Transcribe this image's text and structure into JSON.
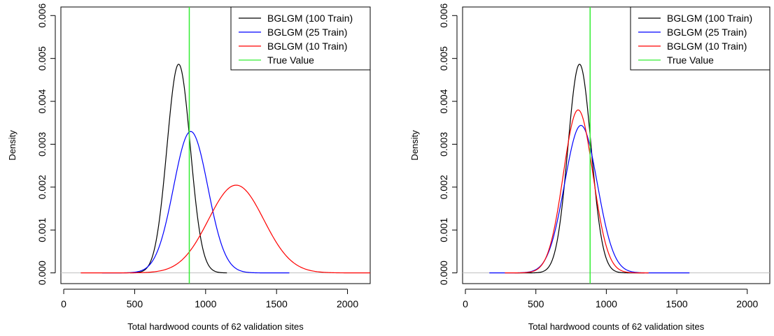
{
  "chart_data": [
    {
      "type": "line",
      "title": "",
      "xlabel": "Total hardwood counts of 62 validation sites",
      "ylabel": "Density",
      "xlim": [
        -20,
        2160
      ],
      "ylim": [
        -0.00025,
        0.0062
      ],
      "x_ticks": [
        0,
        500,
        1000,
        1500,
        2000
      ],
      "y_ticks": [
        0.0,
        0.001,
        0.002,
        0.003,
        0.004,
        0.005,
        0.006
      ],
      "y_tick_labels": [
        "0.000",
        "0.001",
        "0.002",
        "0.003",
        "0.004",
        "0.005",
        "0.006"
      ],
      "hline": 0,
      "legend_position": "top-right",
      "series": [
        {
          "name": "BGLGM (100 Train)",
          "color": "#000000",
          "curve": "normal",
          "mean": 810,
          "sd": 82,
          "x_range": [
            470,
            1150
          ]
        },
        {
          "name": "BGLGM (25 Train)",
          "color": "#0000ff",
          "curve": "normal",
          "mean": 895,
          "sd": 121,
          "x_range": [
            270,
            1590
          ]
        },
        {
          "name": "BGLGM (10 Train)",
          "color": "#ff0000",
          "curve": "normal",
          "mean": 1215,
          "sd": 195,
          "x_range": [
            120,
            2160
          ]
        }
      ],
      "reference_line": {
        "name": "True Value",
        "color": "#33ee33",
        "x": 885
      }
    },
    {
      "type": "line",
      "title": "",
      "xlabel": "Total hardwood counts of 62 validation sites",
      "ylabel": "Density",
      "xlim": [
        -20,
        2160
      ],
      "ylim": [
        -0.00025,
        0.0062
      ],
      "x_ticks": [
        0,
        500,
        1000,
        1500,
        2000
      ],
      "y_ticks": [
        0.0,
        0.001,
        0.002,
        0.003,
        0.004,
        0.005,
        0.006
      ],
      "y_tick_labels": [
        "0.000",
        "0.001",
        "0.002",
        "0.003",
        "0.004",
        "0.005",
        "0.006"
      ],
      "hline": 0,
      "legend_position": "top-right",
      "series": [
        {
          "name": "BGLGM (100 Train)",
          "color": "#000000",
          "curve": "normal",
          "mean": 810,
          "sd": 82,
          "x_range": [
            350,
            1270
          ]
        },
        {
          "name": "BGLGM (25 Train)",
          "color": "#0000ff",
          "curve": "normal",
          "mean": 820,
          "sd": 116,
          "x_range": [
            170,
            1590
          ]
        },
        {
          "name": "BGLGM (10 Train)",
          "color": "#ff0000",
          "curve": "normal",
          "mean": 800,
          "sd": 105,
          "x_range": [
            280,
            1300
          ]
        }
      ],
      "reference_line": {
        "name": "True Value",
        "color": "#33ee33",
        "x": 885
      }
    }
  ]
}
